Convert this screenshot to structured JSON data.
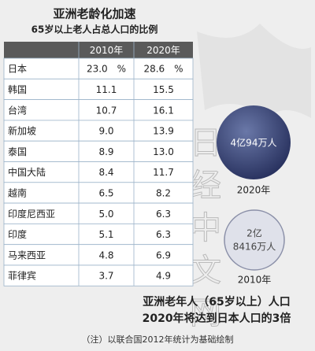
{
  "header": {
    "title": "亚洲老龄化加速",
    "subtitle": "65岁以上老人占总人口的比例"
  },
  "table": {
    "columns": [
      "2010年",
      "2020年"
    ],
    "rows": [
      [
        "日本",
        "23.0　%",
        "28.6　%"
      ],
      [
        "韩国",
        "11.1",
        "15.5"
      ],
      [
        "台湾",
        "10.7",
        "16.1"
      ],
      [
        "新加坡",
        "9.0",
        "13.9"
      ],
      [
        "泰国",
        "8.9",
        "13.0"
      ],
      [
        "中国大陆",
        "8.4",
        "11.7"
      ],
      [
        "越南",
        "6.5",
        "8.2"
      ],
      [
        "印度尼西亚",
        "5.0",
        "6.3"
      ],
      [
        "印度",
        "5.1",
        "6.3"
      ],
      [
        "马来西亚",
        "4.8",
        "6.9"
      ],
      [
        "菲律宾",
        "3.7",
        "4.9"
      ]
    ]
  },
  "bubbles": [
    {
      "value": "4亿94万人",
      "year": "2020年"
    },
    {
      "value_lines": [
        "2亿",
        "8416万人"
      ],
      "year": "2010年"
    }
  ],
  "caption": [
    "亚洲老年人（65岁以上）人口",
    "2020年将达到日本人口的3倍"
  ],
  "note": "（注）以联合国2012年统计为基础绘制",
  "watermark": "日经中文网"
}
